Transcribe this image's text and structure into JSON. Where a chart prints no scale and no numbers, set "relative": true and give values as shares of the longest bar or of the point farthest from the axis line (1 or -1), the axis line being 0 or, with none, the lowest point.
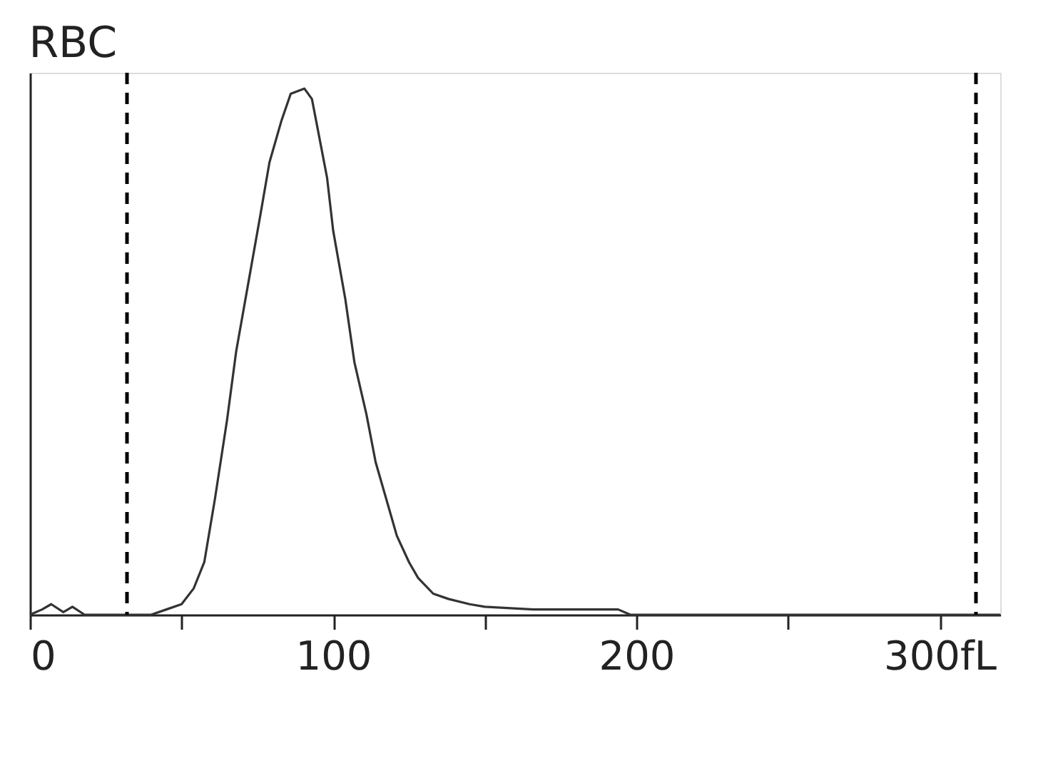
{
  "chart_data": {
    "type": "line",
    "title": "RBC",
    "relative": true,
    "grid": false,
    "marker": "none",
    "line_style": "solid",
    "xlim": [
      0,
      320
    ],
    "xticks": [
      0,
      {
        "value": 50,
        "label": null
      },
      100,
      {
        "value": 150,
        "label": null
      },
      200,
      {
        "value": 250,
        "label": null
      },
      {
        "value": 300,
        "label": "300fL"
      }
    ],
    "ref_lines": [
      {
        "axis": "x",
        "value": 32,
        "line_style": "dashed",
        "color": "#000000"
      },
      {
        "axis": "x",
        "value": 312,
        "line_style": "dashed",
        "color": "#000000"
      }
    ],
    "series": [
      {
        "color": "#333333",
        "x": [
          0,
          4,
          7,
          11,
          14,
          18,
          22,
          40,
          45,
          50,
          54,
          57.5,
          61,
          65,
          68,
          72,
          76,
          79,
          83,
          86,
          90.5,
          93,
          95,
          98,
          100,
          104,
          107,
          111,
          114,
          118,
          121,
          125,
          128,
          133,
          138,
          145,
          150,
          166,
          180,
          194,
          198,
          320
        ],
        "values": [
          0,
          0.01,
          0.02,
          0.005,
          0.015,
          0,
          0,
          0,
          0.01,
          0.02,
          0.05,
          0.1,
          0.22,
          0.37,
          0.5,
          0.63,
          0.76,
          0.86,
          0.94,
          0.99,
          1,
          0.98,
          0.92,
          0.83,
          0.73,
          0.6,
          0.48,
          0.38,
          0.29,
          0.21,
          0.15,
          0.1,
          0.07,
          0.04,
          0.03,
          0.02,
          0.015,
          0.01,
          0.01,
          0.01,
          0,
          0
        ]
      }
    ]
  }
}
